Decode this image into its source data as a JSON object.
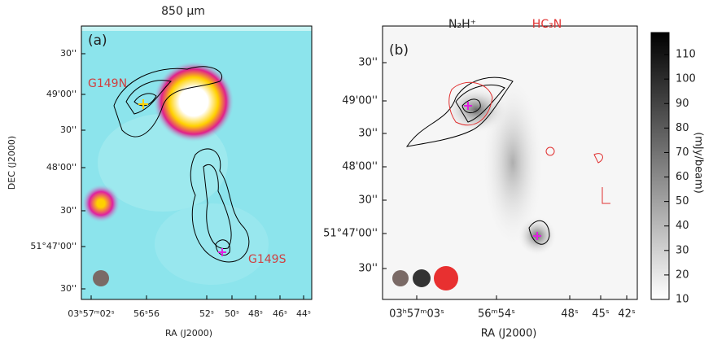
{
  "title": "850 μm",
  "panels": [
    {
      "label": "(a)",
      "xlabel": "RA (J2000)",
      "ylabel": "DEC (J2000)",
      "xticks": [
        "03ʰ57ᵐ02ˢ",
        "56ˢ56",
        "52ˢ",
        "50ˢ",
        "48ˢ",
        "46ˢ",
        "44ˢ"
      ],
      "yticks": [
        "30''",
        "49'00''",
        "30''",
        "48'00''",
        "30''",
        "51°47'00''",
        "30''"
      ],
      "annotations": [
        "G149N",
        "G149S"
      ]
    },
    {
      "label": "(b)",
      "xlabel": "RA (J2000)",
      "xticks": [
        "03ʰ57ᵐ03ˢ",
        "56ᵐ54ˢ",
        "48ˢ",
        "45ˢ",
        "42ˢ"
      ],
      "yticks": [
        "30''",
        "49'00''",
        "30''",
        "48'00''",
        "30''",
        "51°47'00''",
        "30''"
      ],
      "legend": [
        "N₂H⁺",
        "HC₃N"
      ]
    }
  ],
  "colorbar": {
    "label": "(mJy/beam)",
    "lim": [
      10,
      119
    ],
    "ticks": [
      10,
      20,
      30,
      40,
      50,
      60,
      70,
      80,
      90,
      100,
      110
    ]
  }
}
